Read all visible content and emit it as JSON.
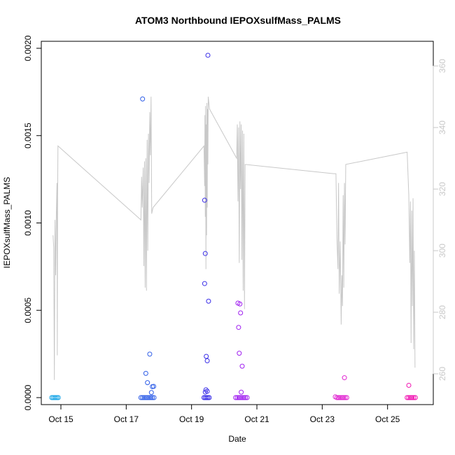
{
  "chart_data": {
    "type": "scatter",
    "title": "ATOM3 Northbound IEPOXsulfMass_PALMS",
    "xlabel": "Date",
    "ylabel": "IEPOXsulfMass_PALMS",
    "xlim": [
      14.4,
      26.4
    ],
    "ylim": [
      -4e-05,
      0.00204
    ],
    "x_ticks": [
      {
        "value": 15,
        "label": "Oct 15"
      },
      {
        "value": 17,
        "label": "Oct 17"
      },
      {
        "value": 19,
        "label": "Oct 19"
      },
      {
        "value": 21,
        "label": "Oct 21"
      },
      {
        "value": 23,
        "label": "Oct 23"
      },
      {
        "value": 25,
        "label": "Oct 25"
      }
    ],
    "y_ticks": [
      {
        "value": 0.0,
        "label": "0.0000"
      },
      {
        "value": 0.0005,
        "label": "0.0005"
      },
      {
        "value": 0.001,
        "label": "0.0010"
      },
      {
        "value": 0.0015,
        "label": "0.0015"
      },
      {
        "value": 0.002,
        "label": "0.0020"
      }
    ],
    "y2lim": [
      250,
      368
    ],
    "y2_ticks": [
      {
        "value": 260,
        "label": "260"
      },
      {
        "value": 280,
        "label": "280"
      },
      {
        "value": 300,
        "label": "300"
      },
      {
        "value": 320,
        "label": "320"
      },
      {
        "value": 340,
        "label": "340"
      },
      {
        "value": 360,
        "label": "360"
      }
    ],
    "grid": false,
    "series": [
      {
        "color": "#1ea8e8",
        "points": [
          [
            14.72,
            0
          ],
          [
            14.76,
            0
          ],
          [
            14.8,
            0
          ],
          [
            14.84,
            0
          ],
          [
            14.88,
            0
          ],
          [
            14.92,
            0
          ]
        ]
      },
      {
        "color": "#2f5ee8",
        "points": [
          [
            17.5,
            0.00171
          ],
          [
            17.6,
            0.000139
          ],
          [
            17.65,
            8.56e-05
          ],
          [
            17.72,
            0.000249
          ],
          [
            17.77,
            2.9e-05
          ],
          [
            17.8,
            6.27e-05
          ],
          [
            17.84,
            6.41e-05
          ],
          [
            17.45,
            0
          ],
          [
            17.5,
            0
          ],
          [
            17.55,
            0
          ],
          [
            17.6,
            0
          ],
          [
            17.65,
            0
          ],
          [
            17.7,
            0
          ],
          [
            17.75,
            0
          ],
          [
            17.8,
            0
          ],
          [
            17.85,
            0
          ]
        ]
      },
      {
        "color": "#3a2ee8",
        "points": [
          [
            19.5,
            0.00196
          ],
          [
            19.4,
            0.00113
          ],
          [
            19.42,
            0.000825
          ],
          [
            19.4,
            0.000653
          ],
          [
            19.52,
            0.000552
          ],
          [
            19.45,
            0.000236
          ],
          [
            19.48,
            0.000211
          ],
          [
            19.44,
            4.49e-05
          ],
          [
            19.48,
            3.64e-05
          ],
          [
            19.42,
            3.14e-05
          ],
          [
            19.38,
            0
          ],
          [
            19.42,
            0
          ],
          [
            19.46,
            0
          ],
          [
            19.5,
            0
          ],
          [
            19.54,
            0
          ]
        ]
      },
      {
        "color": "#a020f0",
        "points": [
          [
            20.42,
            0.000541
          ],
          [
            20.48,
            0.000536
          ],
          [
            20.5,
            0.000485
          ],
          [
            20.44,
            0.000402
          ],
          [
            20.46,
            0.000254
          ],
          [
            20.55,
            0.00018
          ],
          [
            20.52,
            3.11e-05
          ],
          [
            20.35,
            0
          ],
          [
            20.4,
            0
          ],
          [
            20.45,
            0
          ],
          [
            20.5,
            0
          ],
          [
            20.55,
            0
          ],
          [
            20.6,
            0
          ],
          [
            20.65,
            0
          ],
          [
            20.7,
            0
          ]
        ]
      },
      {
        "color": "#e020d0",
        "points": [
          [
            23.68,
            0.000114
          ],
          [
            23.4,
            4.4e-06
          ],
          [
            23.45,
            0
          ],
          [
            23.5,
            0
          ],
          [
            23.55,
            0
          ],
          [
            23.6,
            0
          ],
          [
            23.65,
            0
          ],
          [
            23.7,
            0
          ],
          [
            23.75,
            0
          ]
        ]
      },
      {
        "color": "#f010b0",
        "points": [
          [
            25.65,
            7.04e-05
          ],
          [
            25.6,
            0
          ],
          [
            25.65,
            0
          ],
          [
            25.7,
            0
          ],
          [
            25.75,
            0
          ],
          [
            25.8,
            0
          ],
          [
            25.85,
            0
          ]
        ]
      }
    ],
    "line_series": {
      "axis": "right",
      "color": "#c8c8c8",
      "points": [
        [
          14.76,
          305
        ],
        [
          14.78,
          301
        ],
        [
          14.8,
          258
        ],
        [
          14.82,
          310
        ],
        [
          14.84,
          292
        ],
        [
          14.86,
          312
        ],
        [
          14.88,
          322
        ],
        [
          14.89,
          266
        ],
        [
          14.9,
          318
        ],
        [
          14.91,
          334
        ],
        [
          17.45,
          310
        ],
        [
          17.47,
          324
        ],
        [
          17.49,
          314
        ],
        [
          17.52,
          327
        ],
        [
          17.54,
          295
        ],
        [
          17.56,
          329
        ],
        [
          17.58,
          288
        ],
        [
          17.6,
          330
        ],
        [
          17.62,
          287
        ],
        [
          17.64,
          336
        ],
        [
          17.66,
          300
        ],
        [
          17.68,
          338
        ],
        [
          17.7,
          322
        ],
        [
          17.72,
          345
        ],
        [
          17.74,
          331
        ],
        [
          17.76,
          350
        ],
        [
          17.78,
          312
        ],
        [
          17.82,
          314
        ],
        [
          19.38,
          334
        ],
        [
          19.4,
          321
        ],
        [
          19.41,
          344
        ],
        [
          19.42,
          311
        ],
        [
          19.43,
          347
        ],
        [
          19.44,
          294
        ],
        [
          19.45,
          341
        ],
        [
          19.46,
          305
        ],
        [
          19.47,
          348
        ],
        [
          19.48,
          314
        ],
        [
          19.49,
          346
        ],
        [
          19.5,
          328
        ],
        [
          19.51,
          350
        ],
        [
          19.55,
          346
        ],
        [
          20.38,
          330
        ],
        [
          20.4,
          341
        ],
        [
          20.42,
          316
        ],
        [
          20.44,
          340
        ],
        [
          20.46,
          296
        ],
        [
          20.48,
          342
        ],
        [
          20.5,
          320
        ],
        [
          20.52,
          341
        ],
        [
          20.54,
          297
        ],
        [
          20.56,
          339
        ],
        [
          20.58,
          287
        ],
        [
          20.6,
          338
        ],
        [
          20.62,
          281
        ],
        [
          20.64,
          328
        ],
        [
          23.35,
          325
        ],
        [
          23.42,
          325
        ],
        [
          23.45,
          304
        ],
        [
          23.48,
          294
        ],
        [
          23.5,
          322
        ],
        [
          23.52,
          286
        ],
        [
          23.55,
          303
        ],
        [
          23.58,
          276
        ],
        [
          23.6,
          292
        ],
        [
          23.62,
          282
        ],
        [
          23.64,
          318
        ],
        [
          23.66,
          288
        ],
        [
          23.68,
          322
        ],
        [
          23.7,
          302
        ],
        [
          23.72,
          328
        ],
        [
          25.6,
          332
        ],
        [
          25.65,
          318
        ],
        [
          25.68,
          296
        ],
        [
          25.7,
          316
        ],
        [
          25.72,
          270
        ],
        [
          25.74,
          313
        ],
        [
          25.76,
          282
        ],
        [
          25.78,
          317
        ],
        [
          25.8,
          268
        ],
        [
          25.82,
          300
        ],
        [
          25.84,
          262
        ]
      ]
    }
  }
}
